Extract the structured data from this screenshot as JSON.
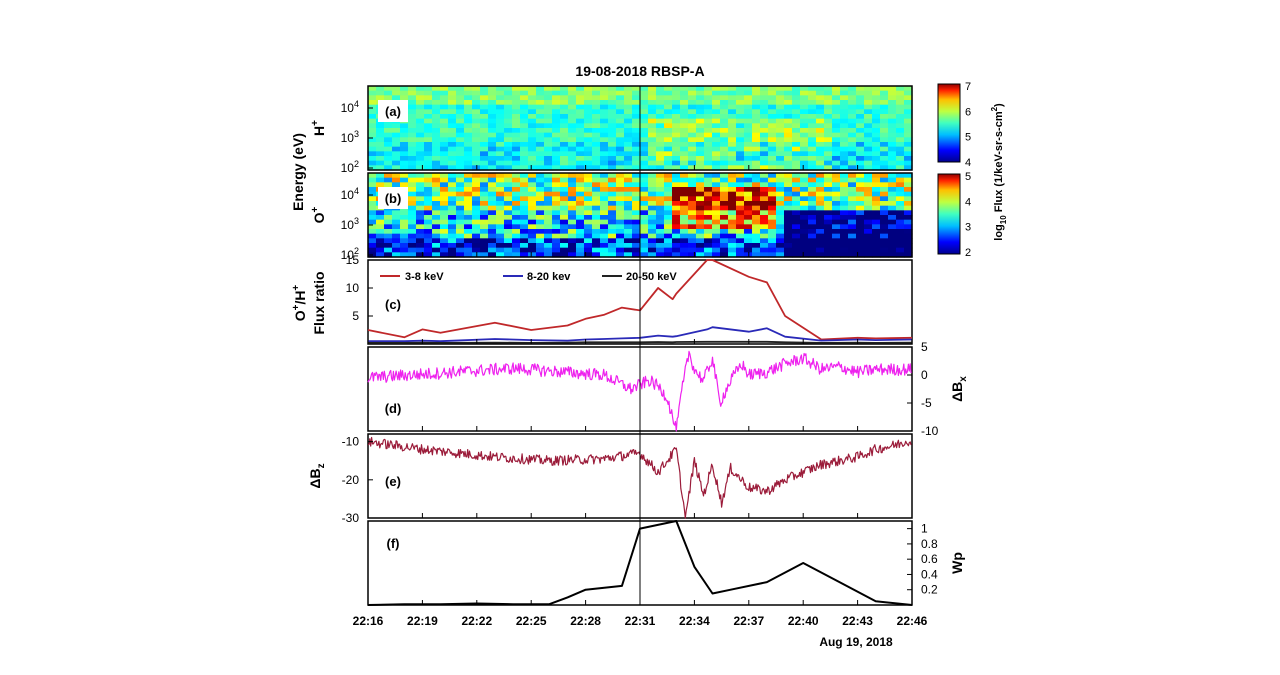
{
  "figure": {
    "title": "19-08-2018  RBSP-A",
    "date_label": "Aug 19, 2018",
    "x_ticks": [
      "22:16",
      "22:19",
      "22:22",
      "22:25",
      "22:28",
      "22:31",
      "22:34",
      "22:37",
      "22:40",
      "22:43",
      "22:46"
    ],
    "event_line_time": "22:31"
  },
  "chart_data": [
    {
      "type": "heatmap",
      "panel": "(a)",
      "species_label": "H",
      "species_charge": "+",
      "shared_ylabel": "Energy (eV)",
      "yscale": "log",
      "ylim": [
        100,
        50000
      ],
      "y_ticks": [
        "10",
        "10",
        "10"
      ],
      "y_tick_exponents": [
        "4",
        "3",
        "2"
      ],
      "colorbar": {
        "ticks": [
          "7",
          "6",
          "5",
          "4"
        ],
        "range": [
          4,
          7
        ]
      }
    },
    {
      "type": "heatmap",
      "panel": "(b)",
      "species_label": "O",
      "species_charge": "+",
      "yscale": "log",
      "ylim": [
        100,
        50000
      ],
      "y_ticks": [
        "10",
        "10",
        "10"
      ],
      "y_tick_exponents": [
        "4",
        "3",
        "2"
      ],
      "colorbar": {
        "ticks": [
          "5",
          "4",
          "3",
          "2"
        ],
        "range": [
          2,
          5
        ]
      },
      "colorbar_label_prefix": "log",
      "colorbar_label_sub": "10",
      "colorbar_label_main": " Flux (1/keV-sr-s-cm",
      "colorbar_label_sup": "2",
      "colorbar_label_end": ")"
    },
    {
      "type": "line",
      "panel": "(c)",
      "ylabel_line1": "O",
      "ylabel_line1_sup1": "+",
      "ylabel_line1_mid": "/H",
      "ylabel_line1_sup2": "+",
      "ylabel_line2": "Flux ratio",
      "ylim": [
        0,
        15
      ],
      "y_ticks": [
        "15",
        "10",
        "5"
      ],
      "x_minutes": [
        0,
        2,
        3,
        4,
        7,
        9,
        11,
        12,
        13,
        14,
        15,
        16,
        16.8,
        17,
        18.7,
        19,
        21,
        22,
        23,
        25,
        27,
        28,
        30
      ],
      "series": [
        {
          "name": "3-8 keV",
          "color": "#c0282a",
          "values": [
            2.5,
            1.2,
            2.6,
            2.0,
            3.8,
            2.5,
            3.3,
            4.5,
            5.2,
            6.5,
            6.0,
            10,
            8,
            9,
            16,
            15,
            12,
            11,
            5,
            0.8,
            1.1,
            1.0,
            1.1
          ]
        },
        {
          "name": "8-20 kev",
          "color": "#2a2ab8",
          "values": [
            0.5,
            0.5,
            0.6,
            0.5,
            0.9,
            0.7,
            0.6,
            0.8,
            0.9,
            1.0,
            1.1,
            1.5,
            1.3,
            1.4,
            2.6,
            3.0,
            2.2,
            2.8,
            1.3,
            0.6,
            0.8,
            0.7,
            0.8
          ]
        },
        {
          "name": "20-50 keV",
          "color": "#222222",
          "values": [
            0.2,
            0.2,
            0.25,
            0.2,
            0.25,
            0.2,
            0.25,
            0.3,
            0.3,
            0.3,
            0.3,
            0.35,
            0.3,
            0.35,
            0.4,
            0.4,
            0.4,
            0.4,
            0.3,
            0.2,
            0.25,
            0.2,
            0.25
          ]
        }
      ]
    },
    {
      "type": "line",
      "panel": "(d)",
      "ylabel": "ΔB",
      "ylabel_sub": "x",
      "ylim": [
        -10,
        5
      ],
      "y_ticks": [
        "5",
        "0",
        "-5",
        "-10"
      ],
      "color": "#ee22ee",
      "x_minutes": [
        0,
        8,
        13,
        14.5,
        15.5,
        16,
        16.5,
        17,
        17.3,
        17.7,
        18,
        18.5,
        19,
        19.4,
        20,
        20.6,
        21,
        22,
        23,
        24,
        25,
        26,
        27,
        28,
        30
      ],
      "values": [
        -0.5,
        1.2,
        0,
        -2.5,
        -1,
        -2,
        -4,
        -10,
        -3,
        4,
        1,
        -1,
        3,
        -5,
        -1,
        2,
        0,
        0.5,
        2,
        3,
        1,
        1.5,
        0.5,
        1,
        1
      ]
    },
    {
      "type": "line",
      "panel": "(e)",
      "ylabel": "ΔB",
      "ylabel_sub": "z",
      "ylim": [
        -30,
        -8
      ],
      "y_ticks": [
        "-10",
        "-20",
        "-30"
      ],
      "color": "#9b1c3a",
      "x_minutes": [
        0,
        3,
        7,
        10,
        13,
        15,
        16,
        17,
        17.5,
        18,
        18.5,
        19,
        19.5,
        20,
        21,
        22,
        23,
        24,
        25,
        26,
        27,
        28,
        29,
        30
      ],
      "values": [
        -10,
        -12,
        -14,
        -15,
        -14.5,
        -13,
        -18,
        -12,
        -30,
        -15,
        -24,
        -16,
        -26,
        -17,
        -22,
        -23,
        -20,
        -18,
        -16,
        -15,
        -14,
        -12,
        -11,
        -9.5
      ]
    },
    {
      "type": "line",
      "panel": "(f)",
      "ylabel": "Wp",
      "ylim": [
        0,
        1.1
      ],
      "y_ticks": [
        "1",
        "0.8",
        "0.6",
        "0.4",
        "0.2"
      ],
      "color": "#000000",
      "x_minutes": [
        0,
        2,
        4,
        6,
        8,
        10,
        11,
        12,
        14,
        15,
        17,
        18,
        19,
        20,
        22,
        24,
        26,
        28,
        30
      ],
      "values": [
        0,
        0.01,
        0.01,
        0.02,
        0.01,
        0.01,
        0.1,
        0.2,
        0.25,
        1.0,
        1.1,
        0.5,
        0.15,
        0.2,
        0.3,
        0.55,
        0.3,
        0.05,
        0
      ]
    }
  ]
}
